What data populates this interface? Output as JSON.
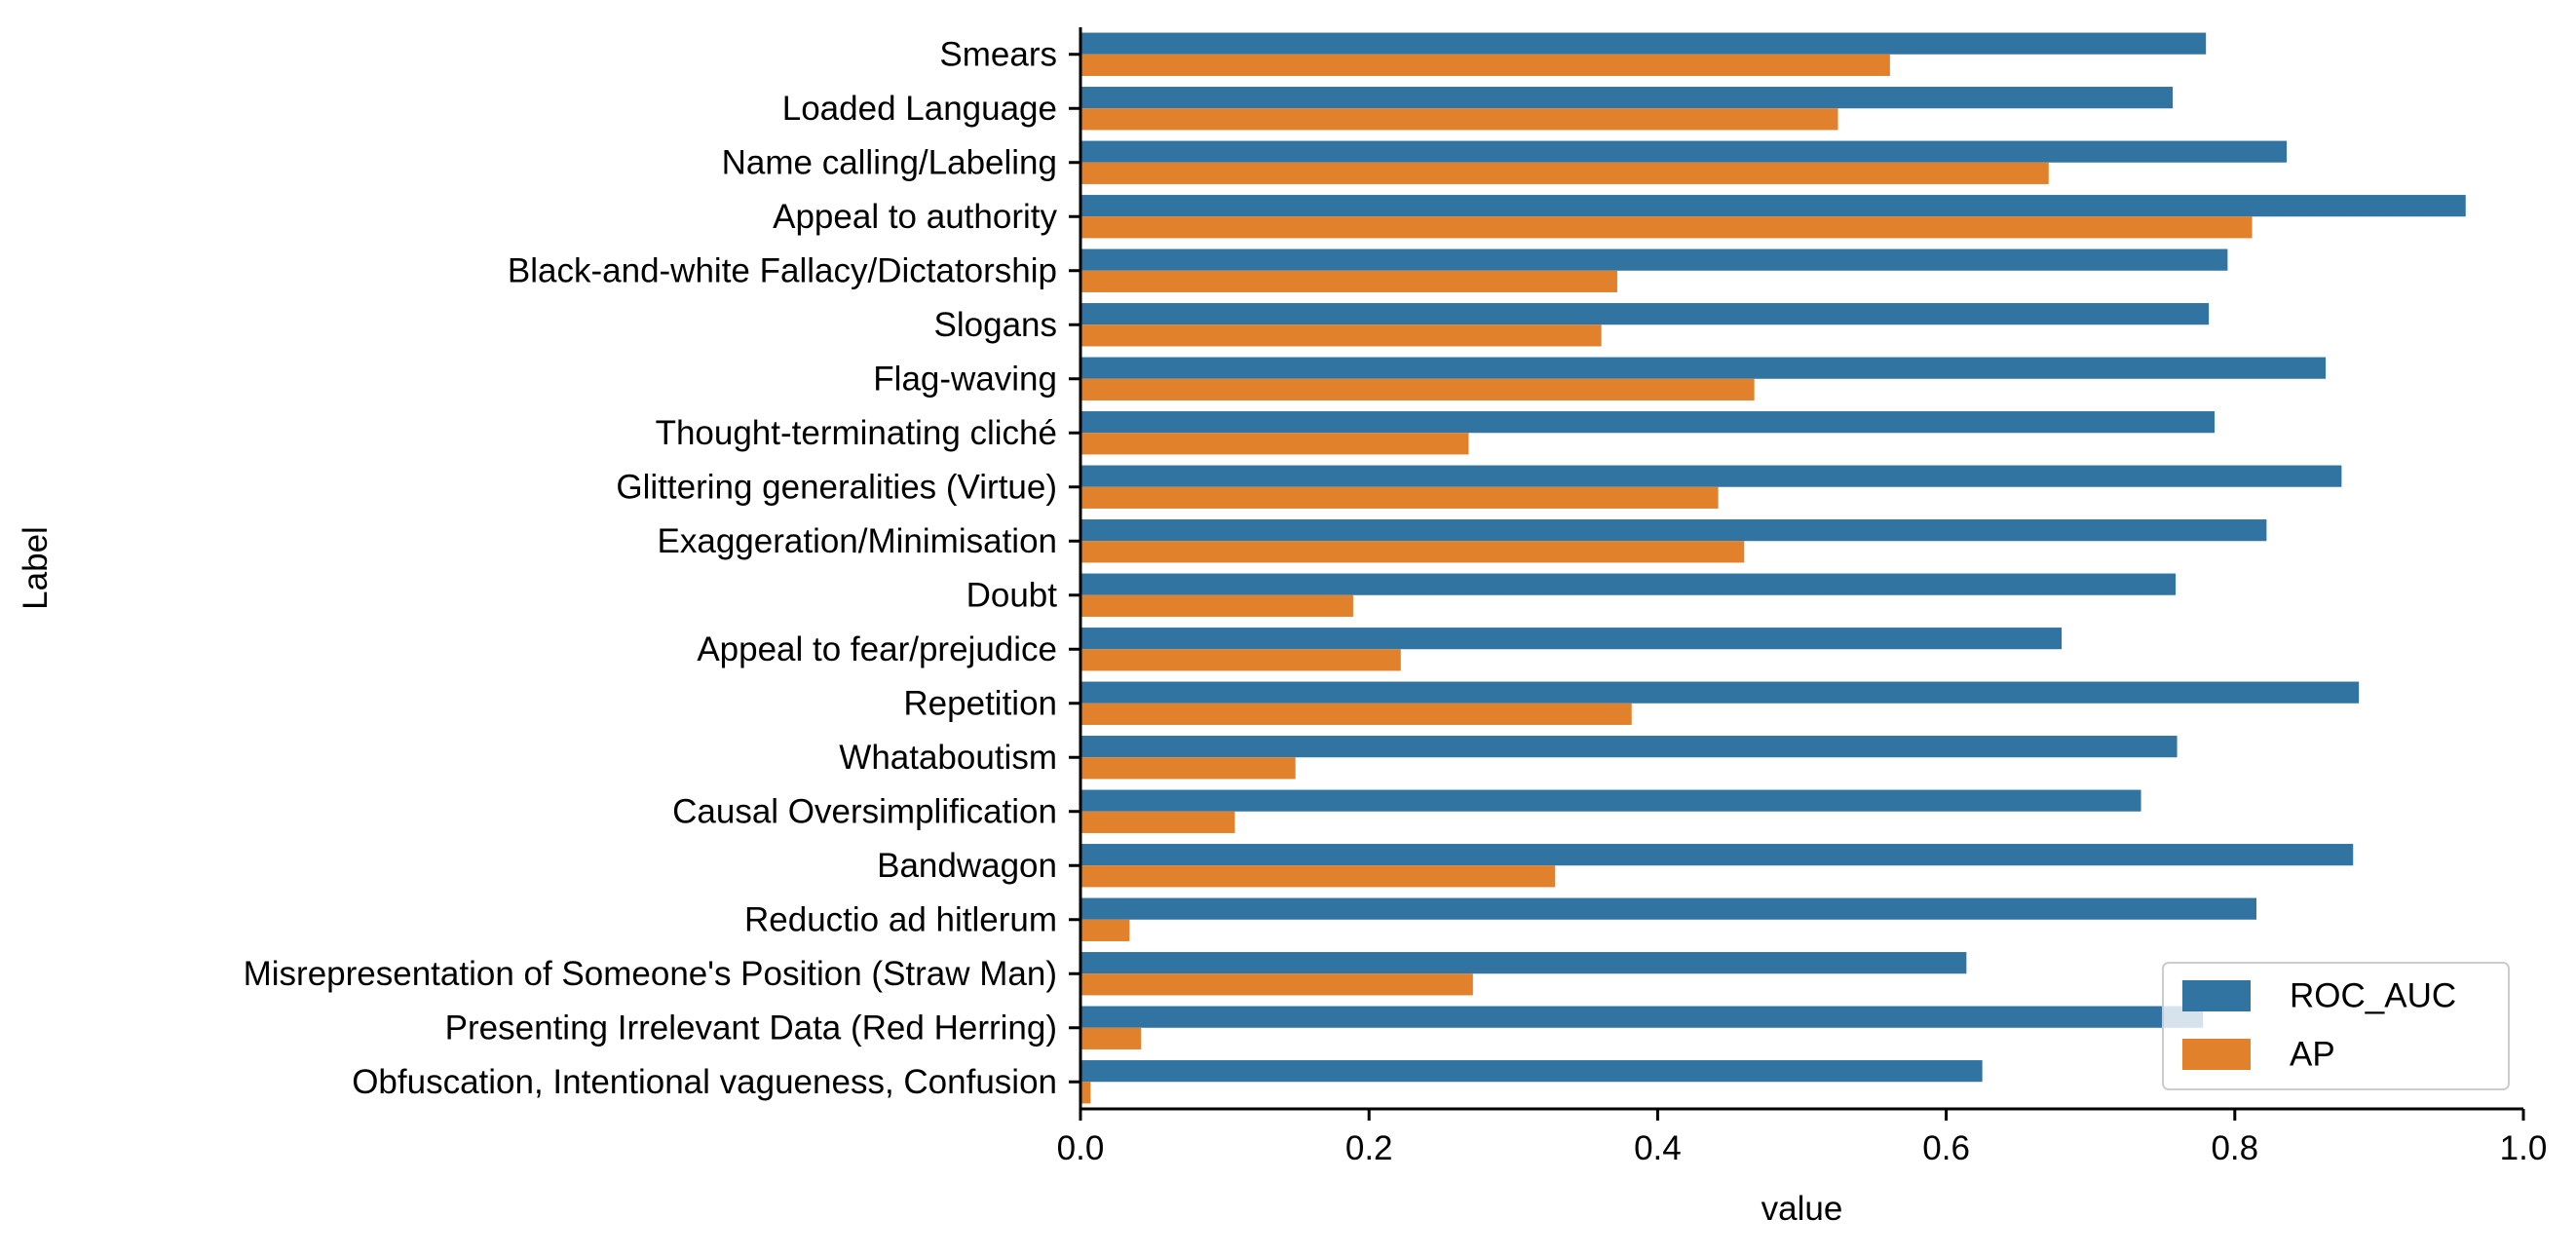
{
  "chart_data": {
    "type": "bar",
    "orientation": "horizontal",
    "title": "",
    "xlabel": "value",
    "ylabel": "Label",
    "xlim": [
      0.0,
      1.0
    ],
    "xticks": [
      "0.0",
      "0.2",
      "0.4",
      "0.6",
      "0.8",
      "1.0"
    ],
    "grid": false,
    "legend_position": "bottom-right",
    "categories": [
      "Smears",
      "Loaded Language",
      "Name calling/Labeling",
      "Appeal to authority",
      "Black-and-white Fallacy/Dictatorship",
      "Slogans",
      "Flag-waving",
      "Thought-terminating cliché",
      "Glittering generalities (Virtue)",
      "Exaggeration/Minimisation",
      "Doubt",
      "Appeal to fear/prejudice",
      "Repetition",
      "Whataboutism",
      "Causal Oversimplification",
      "Bandwagon",
      "Reductio ad hitlerum",
      "Misrepresentation of Someone's Position (Straw Man)",
      "Presenting Irrelevant Data (Red Herring)",
      "Obfuscation, Intentional vagueness, Confusion"
    ],
    "series": [
      {
        "name": "ROC_AUC",
        "color": "#3274a1",
        "values": [
          0.78,
          0.757,
          0.836,
          0.96,
          0.795,
          0.782,
          0.863,
          0.786,
          0.874,
          0.822,
          0.759,
          0.68,
          0.886,
          0.76,
          0.735,
          0.882,
          0.815,
          0.614,
          0.778,
          0.625
        ]
      },
      {
        "name": "AP",
        "color": "#e1812c",
        "values": [
          0.561,
          0.525,
          0.671,
          0.812,
          0.372,
          0.361,
          0.467,
          0.269,
          0.442,
          0.46,
          0.189,
          0.222,
          0.382,
          0.149,
          0.107,
          0.329,
          0.034,
          0.272,
          0.042,
          0.007
        ]
      }
    ]
  }
}
